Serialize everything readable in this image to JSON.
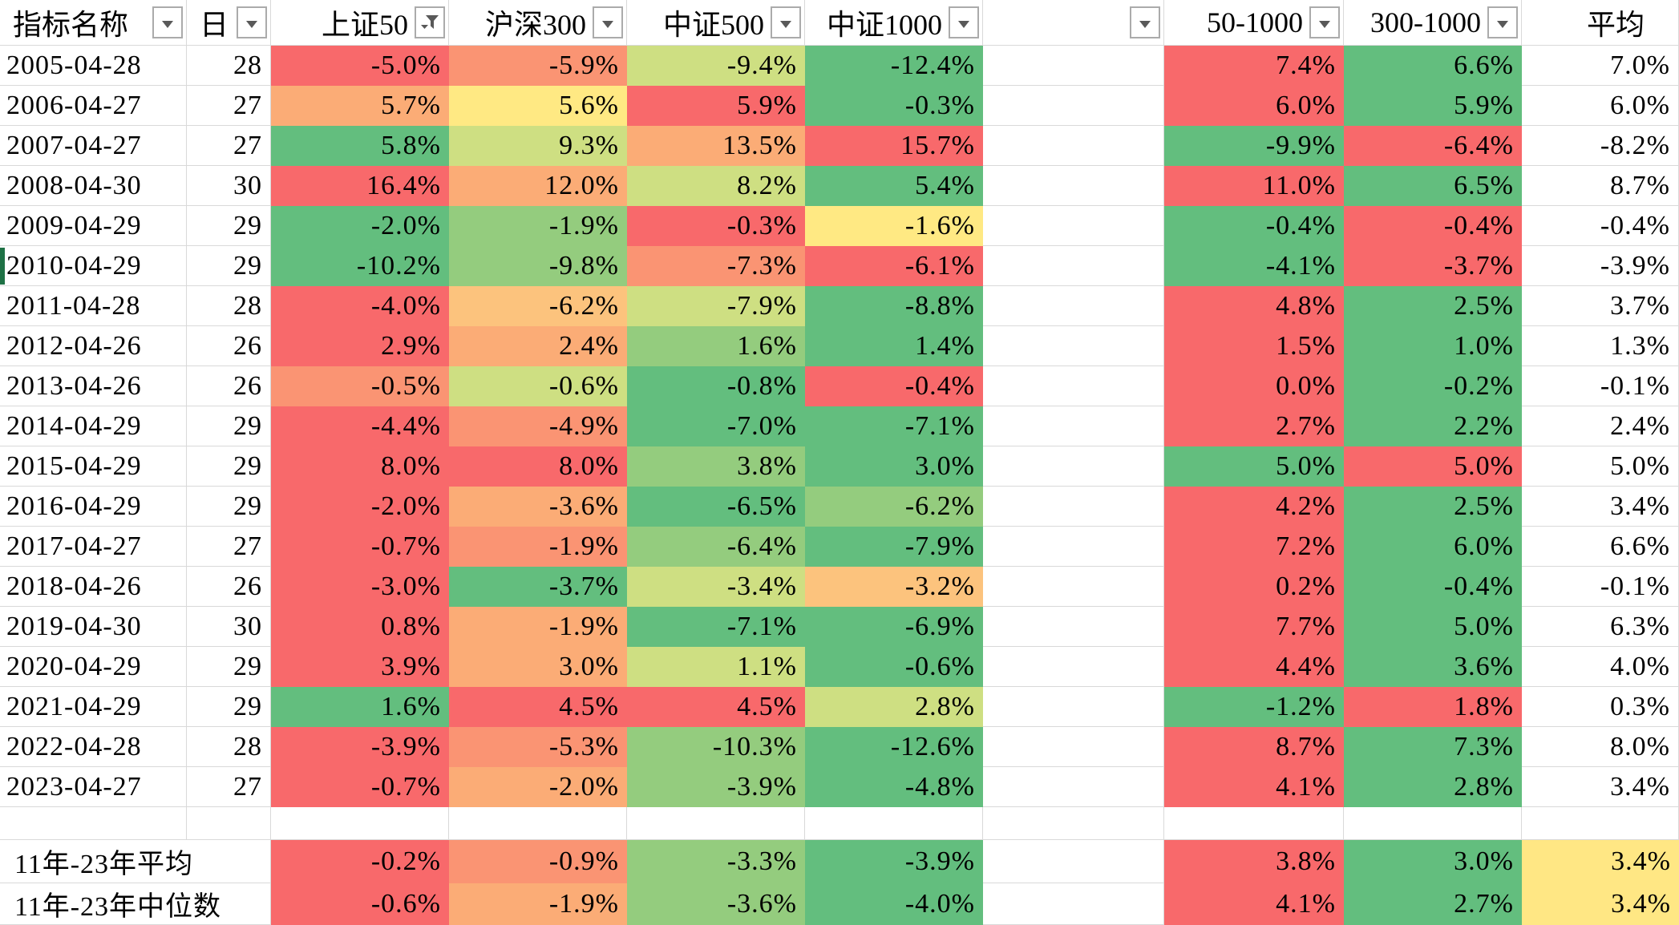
{
  "palette": {
    "r": "#F8696B",
    "ro": "#FA9473",
    "o": "#FBAC76",
    "lo": "#FCC37D",
    "y": "#FFE983",
    "yg": "#CEDF82",
    "lg": "#94CC7E",
    "g": "#63BE7E",
    "summary_yellow": "#FFE784",
    "gridline": "#D9D9D9",
    "dropdown_border": "#ABABAB",
    "dropdown_glyph": "#595959",
    "row_marker_green": "#1E7145",
    "text": "#000000"
  },
  "header": {
    "columns": [
      {
        "label": "指标名称",
        "dropdown": "arrow",
        "align": "left"
      },
      {
        "label": "日",
        "dropdown": "arrow",
        "align": "left"
      },
      {
        "label": "上证50",
        "dropdown": "filter",
        "align": "right"
      },
      {
        "label": "沪深300",
        "dropdown": "arrow",
        "align": "right"
      },
      {
        "label": "中证500",
        "dropdown": "arrow",
        "align": "right"
      },
      {
        "label": "中证1000",
        "dropdown": "arrow",
        "align": "right"
      },
      {
        "label": "",
        "dropdown": "arrow",
        "align": "right"
      },
      {
        "label": "50-1000",
        "dropdown": "arrow",
        "align": "right"
      },
      {
        "label": "300-1000",
        "dropdown": "arrow",
        "align": "right"
      },
      {
        "label": "平均",
        "dropdown": "none",
        "align": "plain"
      }
    ]
  },
  "rows": [
    {
      "date": "2005-04-28",
      "day": "28",
      "cells": [
        {
          "v": "-5.0%",
          "c": "r"
        },
        {
          "v": "-5.9%",
          "c": "ro"
        },
        {
          "v": "-9.4%",
          "c": "yg"
        },
        {
          "v": "-12.4%",
          "c": "g"
        }
      ],
      "diff": [
        {
          "v": "7.4%",
          "c": "r"
        },
        {
          "v": "6.6%",
          "c": "g"
        }
      ],
      "avg": "7.0%"
    },
    {
      "date": "2006-04-27",
      "day": "27",
      "cells": [
        {
          "v": "5.7%",
          "c": "o"
        },
        {
          "v": "5.6%",
          "c": "y"
        },
        {
          "v": "5.9%",
          "c": "r"
        },
        {
          "v": "-0.3%",
          "c": "g"
        }
      ],
      "diff": [
        {
          "v": "6.0%",
          "c": "r"
        },
        {
          "v": "5.9%",
          "c": "g"
        }
      ],
      "avg": "6.0%"
    },
    {
      "date": "2007-04-27",
      "day": "27",
      "cells": [
        {
          "v": "5.8%",
          "c": "g"
        },
        {
          "v": "9.3%",
          "c": "yg"
        },
        {
          "v": "13.5%",
          "c": "o"
        },
        {
          "v": "15.7%",
          "c": "r"
        }
      ],
      "diff": [
        {
          "v": "-9.9%",
          "c": "g"
        },
        {
          "v": "-6.4%",
          "c": "r"
        }
      ],
      "avg": "-8.2%"
    },
    {
      "date": "2008-04-30",
      "day": "30",
      "cells": [
        {
          "v": "16.4%",
          "c": "r"
        },
        {
          "v": "12.0%",
          "c": "o"
        },
        {
          "v": "8.2%",
          "c": "yg"
        },
        {
          "v": "5.4%",
          "c": "g"
        }
      ],
      "diff": [
        {
          "v": "11.0%",
          "c": "r"
        },
        {
          "v": "6.5%",
          "c": "g"
        }
      ],
      "avg": "8.7%"
    },
    {
      "date": "2009-04-29",
      "day": "29",
      "cells": [
        {
          "v": "-2.0%",
          "c": "g"
        },
        {
          "v": "-1.9%",
          "c": "lg"
        },
        {
          "v": "-0.3%",
          "c": "r"
        },
        {
          "v": "-1.6%",
          "c": "y"
        }
      ],
      "diff": [
        {
          "v": "-0.4%",
          "c": "g"
        },
        {
          "v": "-0.4%",
          "c": "r"
        }
      ],
      "avg": "-0.4%"
    },
    {
      "date": "2010-04-29",
      "day": "29",
      "cells": [
        {
          "v": "-10.2%",
          "c": "g"
        },
        {
          "v": "-9.8%",
          "c": "lg"
        },
        {
          "v": "-7.3%",
          "c": "ro"
        },
        {
          "v": "-6.1%",
          "c": "r"
        }
      ],
      "diff": [
        {
          "v": "-4.1%",
          "c": "g"
        },
        {
          "v": "-3.7%",
          "c": "r"
        }
      ],
      "avg": "-3.9%"
    },
    {
      "date": "2011-04-28",
      "day": "28",
      "cells": [
        {
          "v": "-4.0%",
          "c": "r"
        },
        {
          "v": "-6.2%",
          "c": "lo"
        },
        {
          "v": "-7.9%",
          "c": "yg"
        },
        {
          "v": "-8.8%",
          "c": "g"
        }
      ],
      "diff": [
        {
          "v": "4.8%",
          "c": "r"
        },
        {
          "v": "2.5%",
          "c": "g"
        }
      ],
      "avg": "3.7%"
    },
    {
      "date": "2012-04-26",
      "day": "26",
      "cells": [
        {
          "v": "2.9%",
          "c": "r"
        },
        {
          "v": "2.4%",
          "c": "o"
        },
        {
          "v": "1.6%",
          "c": "lg"
        },
        {
          "v": "1.4%",
          "c": "g"
        }
      ],
      "diff": [
        {
          "v": "1.5%",
          "c": "r"
        },
        {
          "v": "1.0%",
          "c": "g"
        }
      ],
      "avg": "1.3%"
    },
    {
      "date": "2013-04-26",
      "day": "26",
      "cells": [
        {
          "v": "-0.5%",
          "c": "ro"
        },
        {
          "v": "-0.6%",
          "c": "yg"
        },
        {
          "v": "-0.8%",
          "c": "g"
        },
        {
          "v": "-0.4%",
          "c": "r"
        }
      ],
      "diff": [
        {
          "v": "0.0%",
          "c": "r"
        },
        {
          "v": "-0.2%",
          "c": "g"
        }
      ],
      "avg": "-0.1%"
    },
    {
      "date": "2014-04-29",
      "day": "29",
      "cells": [
        {
          "v": "-4.4%",
          "c": "r"
        },
        {
          "v": "-4.9%",
          "c": "ro"
        },
        {
          "v": "-7.0%",
          "c": "g"
        },
        {
          "v": "-7.1%",
          "c": "g"
        }
      ],
      "diff": [
        {
          "v": "2.7%",
          "c": "r"
        },
        {
          "v": "2.2%",
          "c": "g"
        }
      ],
      "avg": "2.4%"
    },
    {
      "date": "2015-04-29",
      "day": "29",
      "cells": [
        {
          "v": "8.0%",
          "c": "r"
        },
        {
          "v": "8.0%",
          "c": "r"
        },
        {
          "v": "3.8%",
          "c": "lg"
        },
        {
          "v": "3.0%",
          "c": "g"
        }
      ],
      "diff": [
        {
          "v": "5.0%",
          "c": "g"
        },
        {
          "v": "5.0%",
          "c": "r"
        }
      ],
      "avg": "5.0%"
    },
    {
      "date": "2016-04-29",
      "day": "29",
      "cells": [
        {
          "v": "-2.0%",
          "c": "r"
        },
        {
          "v": "-3.6%",
          "c": "o"
        },
        {
          "v": "-6.5%",
          "c": "g"
        },
        {
          "v": "-6.2%",
          "c": "lg"
        }
      ],
      "diff": [
        {
          "v": "4.2%",
          "c": "r"
        },
        {
          "v": "2.5%",
          "c": "g"
        }
      ],
      "avg": "3.4%"
    },
    {
      "date": "2017-04-27",
      "day": "27",
      "cells": [
        {
          "v": "-0.7%",
          "c": "r"
        },
        {
          "v": "-1.9%",
          "c": "ro"
        },
        {
          "v": "-6.4%",
          "c": "lg"
        },
        {
          "v": "-7.9%",
          "c": "g"
        }
      ],
      "diff": [
        {
          "v": "7.2%",
          "c": "r"
        },
        {
          "v": "6.0%",
          "c": "g"
        }
      ],
      "avg": "6.6%"
    },
    {
      "date": "2018-04-26",
      "day": "26",
      "cells": [
        {
          "v": "-3.0%",
          "c": "r"
        },
        {
          "v": "-3.7%",
          "c": "g"
        },
        {
          "v": "-3.4%",
          "c": "yg"
        },
        {
          "v": "-3.2%",
          "c": "lo"
        }
      ],
      "diff": [
        {
          "v": "0.2%",
          "c": "r"
        },
        {
          "v": "-0.4%",
          "c": "g"
        }
      ],
      "avg": "-0.1%"
    },
    {
      "date": "2019-04-30",
      "day": "30",
      "cells": [
        {
          "v": "0.8%",
          "c": "r"
        },
        {
          "v": "-1.9%",
          "c": "o"
        },
        {
          "v": "-7.1%",
          "c": "g"
        },
        {
          "v": "-6.9%",
          "c": "g"
        }
      ],
      "diff": [
        {
          "v": "7.7%",
          "c": "r"
        },
        {
          "v": "5.0%",
          "c": "g"
        }
      ],
      "avg": "6.3%"
    },
    {
      "date": "2020-04-29",
      "day": "29",
      "cells": [
        {
          "v": "3.9%",
          "c": "r"
        },
        {
          "v": "3.0%",
          "c": "o"
        },
        {
          "v": "1.1%",
          "c": "yg"
        },
        {
          "v": "-0.6%",
          "c": "g"
        }
      ],
      "diff": [
        {
          "v": "4.4%",
          "c": "r"
        },
        {
          "v": "3.6%",
          "c": "g"
        }
      ],
      "avg": "4.0%"
    },
    {
      "date": "2021-04-29",
      "day": "29",
      "cells": [
        {
          "v": "1.6%",
          "c": "g"
        },
        {
          "v": "4.5%",
          "c": "r"
        },
        {
          "v": "4.5%",
          "c": "r"
        },
        {
          "v": "2.8%",
          "c": "yg"
        }
      ],
      "diff": [
        {
          "v": "-1.2%",
          "c": "g"
        },
        {
          "v": "1.8%",
          "c": "r"
        }
      ],
      "avg": "0.3%"
    },
    {
      "date": "2022-04-28",
      "day": "28",
      "cells": [
        {
          "v": "-3.9%",
          "c": "r"
        },
        {
          "v": "-5.3%",
          "c": "ro"
        },
        {
          "v": "-10.3%",
          "c": "lg"
        },
        {
          "v": "-12.6%",
          "c": "g"
        }
      ],
      "diff": [
        {
          "v": "8.7%",
          "c": "r"
        },
        {
          "v": "7.3%",
          "c": "g"
        }
      ],
      "avg": "8.0%"
    },
    {
      "date": "2023-04-27",
      "day": "27",
      "cells": [
        {
          "v": "-0.7%",
          "c": "r"
        },
        {
          "v": "-2.0%",
          "c": "o"
        },
        {
          "v": "-3.9%",
          "c": "lg"
        },
        {
          "v": "-4.8%",
          "c": "g"
        }
      ],
      "diff": [
        {
          "v": "4.1%",
          "c": "r"
        },
        {
          "v": "2.8%",
          "c": "g"
        }
      ],
      "avg": "3.4%"
    }
  ],
  "summary_rows": [
    {
      "label": "11年-23年平均",
      "cells": [
        {
          "v": "-0.2%",
          "c": "r"
        },
        {
          "v": "-0.9%",
          "c": "ro"
        },
        {
          "v": "-3.3%",
          "c": "lg"
        },
        {
          "v": "-3.9%",
          "c": "g"
        }
      ],
      "diff": [
        {
          "v": "3.8%",
          "c": "r"
        },
        {
          "v": "3.0%",
          "c": "g"
        }
      ],
      "avg": "3.4%",
      "avg_bg": "summary_yellow"
    },
    {
      "label": "11年-23年中位数",
      "cells": [
        {
          "v": "-0.6%",
          "c": "r"
        },
        {
          "v": "-1.9%",
          "c": "o"
        },
        {
          "v": "-3.6%",
          "c": "lg"
        },
        {
          "v": "-4.0%",
          "c": "g"
        }
      ],
      "diff": [
        {
          "v": "4.1%",
          "c": "r"
        },
        {
          "v": "2.7%",
          "c": "g"
        }
      ],
      "avg": "3.4%",
      "avg_bg": "summary_yellow"
    }
  ]
}
